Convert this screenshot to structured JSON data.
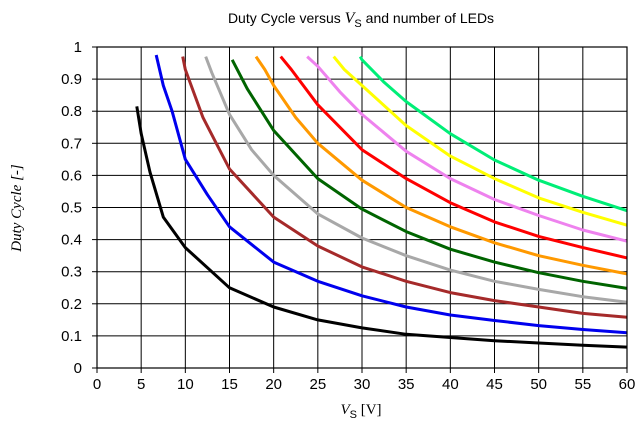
{
  "chart_data": {
    "type": "line",
    "title": {
      "prefix": "Duty Cycle versus ",
      "symbol": "V",
      "subscript": "S",
      "suffix": " and number of LEDs"
    },
    "xlabel": {
      "symbol": "V",
      "subscript": "S",
      "unit": " [V]"
    },
    "ylabel": "Duty Cycle [-]",
    "xlim": [
      0,
      60
    ],
    "ylim": [
      0,
      1
    ],
    "xticks": [
      0,
      5,
      10,
      15,
      20,
      25,
      30,
      35,
      40,
      45,
      50,
      55,
      60
    ],
    "yticks": [
      0,
      0.1,
      0.2,
      0.3,
      0.4,
      0.5,
      0.6,
      0.7,
      0.8,
      0.9,
      1
    ],
    "xtick_labels": [
      "0",
      "5",
      "10",
      "15",
      "20",
      "25",
      "30",
      "35",
      "40",
      "45",
      "50",
      "55",
      "60"
    ],
    "ytick_labels": [
      "0",
      "0.1",
      "0.2",
      "0.3",
      "0.4",
      "0.5",
      "0.6",
      "0.7",
      "0.8",
      "0.9",
      "1"
    ],
    "grid": true,
    "series": [
      {
        "color": "#000000",
        "x": [
          4.5,
          5,
          6,
          7.5,
          10,
          15,
          20,
          25,
          30,
          35,
          40,
          45,
          50,
          55,
          60
        ],
        "y": [
          0.815,
          0.73,
          0.61,
          0.47,
          0.375,
          0.25,
          0.19,
          0.15,
          0.125,
          0.105,
          0.095,
          0.085,
          0.078,
          0.071,
          0.065
        ]
      },
      {
        "color": "#0000ee",
        "x": [
          6.7,
          7.5,
          8.5,
          10,
          12.5,
          15,
          20,
          25,
          30,
          35,
          40,
          45,
          50,
          55,
          60
        ],
        "y": [
          0.975,
          0.88,
          0.8,
          0.65,
          0.54,
          0.44,
          0.33,
          0.27,
          0.225,
          0.19,
          0.165,
          0.148,
          0.132,
          0.12,
          0.11
        ]
      },
      {
        "color": "#a52a2a",
        "x": [
          9.7,
          10,
          12,
          15,
          20,
          25,
          30,
          35,
          40,
          45,
          50,
          55,
          60
        ],
        "y": [
          0.97,
          0.93,
          0.78,
          0.62,
          0.47,
          0.38,
          0.315,
          0.27,
          0.235,
          0.21,
          0.19,
          0.17,
          0.158
        ]
      },
      {
        "color": "#a8a8a8",
        "x": [
          12.3,
          13,
          15,
          17.5,
          20,
          25,
          30,
          35,
          40,
          45,
          50,
          55,
          60
        ],
        "y": [
          0.97,
          0.92,
          0.79,
          0.68,
          0.6,
          0.48,
          0.405,
          0.35,
          0.305,
          0.27,
          0.245,
          0.222,
          0.205
        ]
      },
      {
        "color": "#006400",
        "x": [
          15.3,
          17,
          20,
          25,
          30,
          35,
          40,
          45,
          50,
          55,
          60
        ],
        "y": [
          0.96,
          0.87,
          0.74,
          0.59,
          0.495,
          0.425,
          0.37,
          0.33,
          0.297,
          0.27,
          0.248
        ]
      },
      {
        "color": "#ff9900",
        "x": [
          18,
          19,
          20,
          22.5,
          25,
          30,
          35,
          40,
          45,
          50,
          55,
          60
        ],
        "y": [
          0.97,
          0.93,
          0.88,
          0.78,
          0.7,
          0.585,
          0.5,
          0.44,
          0.39,
          0.35,
          0.32,
          0.293
        ]
      },
      {
        "color": "#ff0000",
        "x": [
          20.8,
          22,
          25,
          30,
          35,
          40,
          45,
          50,
          55,
          60
        ],
        "y": [
          0.97,
          0.93,
          0.82,
          0.68,
          0.59,
          0.515,
          0.455,
          0.41,
          0.375,
          0.343
        ]
      },
      {
        "color": "#ee82ee",
        "x": [
          23.8,
          25,
          27.5,
          30,
          35,
          40,
          45,
          50,
          55,
          60
        ],
        "y": [
          0.97,
          0.94,
          0.86,
          0.79,
          0.675,
          0.59,
          0.525,
          0.475,
          0.43,
          0.395
        ]
      },
      {
        "color": "#ffff00",
        "x": [
          26.8,
          28,
          30,
          35,
          40,
          45,
          50,
          55,
          60
        ],
        "y": [
          0.97,
          0.93,
          0.88,
          0.755,
          0.66,
          0.59,
          0.53,
          0.485,
          0.445
        ]
      },
      {
        "color": "#00ee77",
        "x": [
          29.8,
          30,
          32.5,
          35,
          40,
          45,
          50,
          55,
          60
        ],
        "y": [
          0.97,
          0.96,
          0.89,
          0.83,
          0.73,
          0.648,
          0.585,
          0.535,
          0.49
        ]
      }
    ]
  }
}
